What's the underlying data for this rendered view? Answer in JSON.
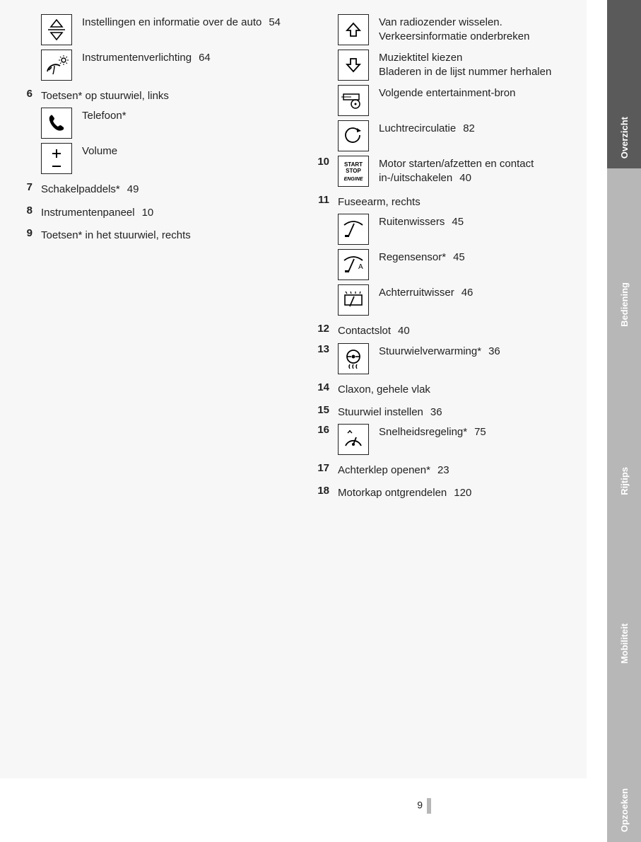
{
  "page_number": "9",
  "tabs": [
    {
      "label": "Overzicht",
      "bg": "#5a5a5a"
    },
    {
      "label": "Bediening",
      "bg": "#b7b7b7"
    },
    {
      "label": "Rijtips",
      "bg": "#b7b7b7"
    },
    {
      "label": "Mobiliteit",
      "bg": "#b7b7b7"
    },
    {
      "label": "Opzoeken",
      "bg": "#b7b7b7"
    }
  ],
  "left": [
    {
      "type": "icon",
      "icon": "up-down",
      "lines": [
        {
          "t": "Instellingen en informatie over de auto",
          "p": "54"
        }
      ]
    },
    {
      "type": "icon",
      "icon": "gauge-sun",
      "lines": [
        {
          "t": "Instrumentenverlichting",
          "p": "64"
        }
      ]
    },
    {
      "type": "head",
      "num": "6",
      "t": "Toetsen* op stuurwiel, links"
    },
    {
      "type": "icon",
      "indent": true,
      "icon": "phone",
      "lines": [
        {
          "t": "Telefoon*"
        }
      ]
    },
    {
      "type": "icon",
      "indent": true,
      "icon": "plus-minus",
      "lines": [
        {
          "t": "Volume"
        }
      ]
    },
    {
      "type": "head",
      "num": "7",
      "t": "Schakelpaddels*",
      "p": "49"
    },
    {
      "type": "head",
      "num": "8",
      "t": "Instrumentenpaneel",
      "p": "10"
    },
    {
      "type": "head",
      "num": "9",
      "t": "Toetsen* in het stuurwiel, rechts"
    }
  ],
  "right": [
    {
      "type": "icon",
      "icon": "arrow-up",
      "lines": [
        {
          "t": "Van radiozender wisselen."
        },
        {
          "t": "Verkeersinformatie onderbreken"
        }
      ]
    },
    {
      "type": "icon",
      "icon": "arrow-down",
      "lines": [
        {
          "t": "Muziektitel kiezen"
        },
        {
          "t": "Bladeren in de lijst nummer herha­len"
        }
      ]
    },
    {
      "type": "icon",
      "icon": "media-source",
      "lines": [
        {
          "t": "Volgende entertainment-bron"
        }
      ]
    },
    {
      "type": "icon",
      "icon": "recirc",
      "lines": [
        {
          "t": "Luchtrecirculatie",
          "p": "82"
        }
      ]
    },
    {
      "type": "iconhead",
      "num": "10",
      "icon": "start-stop",
      "lines": [
        {
          "t": "Motor starten/afzetten en contact in-/uitschakelen",
          "p": "40"
        }
      ]
    },
    {
      "type": "head",
      "num": "11",
      "t": "Fuseearm, rechts"
    },
    {
      "type": "icon",
      "indent": true,
      "icon": "wiper",
      "lines": [
        {
          "t": "Ruitenwissers",
          "p": "45"
        }
      ]
    },
    {
      "type": "icon",
      "indent": true,
      "icon": "wiper-a",
      "lines": [
        {
          "t": "Regensensor*",
          "p": "45"
        }
      ]
    },
    {
      "type": "icon",
      "indent": true,
      "icon": "rear-wiper",
      "lines": [
        {
          "t": "Achterruitwisser",
          "p": "46"
        }
      ]
    },
    {
      "type": "head",
      "num": "12",
      "t": "Contactslot",
      "p": "40"
    },
    {
      "type": "iconhead",
      "num": "13",
      "icon": "steering-heat",
      "lines": [
        {
          "t": "Stuurwielverwarming*",
          "p": "36"
        }
      ]
    },
    {
      "type": "head",
      "num": "14",
      "t": "Claxon, gehele vlak"
    },
    {
      "type": "head",
      "num": "15",
      "t": "Stuurwiel instellen",
      "p": "36"
    },
    {
      "type": "iconhead",
      "num": "16",
      "icon": "cruise",
      "lines": [
        {
          "t": "Snelheidsregeling*",
          "p": "75"
        }
      ]
    },
    {
      "type": "head",
      "num": "17",
      "t": "Achterklep openen*",
      "p": "23"
    },
    {
      "type": "head",
      "num": "18",
      "t": "Motorkap ontgrendelen",
      "p": "120"
    }
  ],
  "icons": {
    "up-down": "<svg width='28' height='34' viewBox='0 0 28 34'><path d='M14 3 L22 13 L6 13 Z' fill='none' stroke='#000' stroke-width='1.6'/><path d='M14 31 L22 21 L6 21 Z' fill='none' stroke='#000' stroke-width='1.6'/><line x1='2' y1='17' x2='26' y2='17' stroke='#000' stroke-width='1.4'/></svg>",
    "gauge-sun": "<svg width='34' height='30' viewBox='0 0 34 30'><path d='M4 24 A12 12 0 0 1 22 16' fill='none' stroke='#000' stroke-width='1.8'/><line x1='6' y1='22' x2='10' y2='18' stroke='#000' stroke-width='1.6'/><circle cx='27' cy='8' r='3' fill='none' stroke='#000' stroke-width='1.4'/><line x1='27' y1='1' x2='27' y2='3' stroke='#000'/><line x1='27' y1='13' x2='27' y2='15' stroke='#000'/><line x1='20' y1='8' x2='22' y2='8' stroke='#000'/><line x1='32' y1='8' x2='34' y2='8' stroke='#000'/><line x1='22' y1='3' x2='23.5' y2='4.5' stroke='#000'/><line x1='30.5' y1='11.5' x2='32' y2='13' stroke='#000'/><line x1='32' y1='3' x2='30.5' y2='4.5' stroke='#000'/><line x1='23.5' y1='11.5' x2='22' y2='13' stroke='#000'/><path d='M12 28 Q14 20 14 16' fill='none' stroke='#000' stroke-width='1.4'/></svg>",
    "phone": "<svg width='30' height='30' viewBox='0 0 30 30'><path d='M7 4 Q4 6 5 11 Q7 18 13 23 Q18 27 23 25 Q26 24 25 21 L21 18 Q19 18 17 20 Q12 17 10 12 Q12 10 12 8 L9 4 Q8 3 7 4 Z' fill='#000'/></svg>",
    "plus-minus": "<svg width='28' height='34' viewBox='0 0 28 34'><line x1='14' y1='4' x2='14' y2='16' stroke='#000' stroke-width='2'/><line x1='8' y1='10' x2='20' y2='10' stroke='#000' stroke-width='2'/><line x1='8' y1='28' x2='20' y2='28' stroke='#000' stroke-width='2'/></svg>",
    "arrow-up": "<svg width='30' height='30' viewBox='0 0 30 30'><path d='M15 6 L24 16 L19 16 L19 24 L11 24 L11 16 L6 16 Z' fill='none' stroke='#000' stroke-width='1.8'/></svg>",
    "arrow-down": "<svg width='30' height='30' viewBox='0 0 30 30'><path d='M15 24 L24 14 L19 14 L19 6 L11 6 L11 14 L6 14 Z' fill='none' stroke='#000' stroke-width='1.8'/></svg>",
    "media-source": "<svg width='34' height='26' viewBox='0 0 34 26'><rect x='3' y='4' width='22' height='8' fill='none' stroke='#000' stroke-width='1.5'/><line x='5' y1='8' x2='14' y2='8' stroke='#000'/><circle cx='20' cy='18' r='6' fill='none' stroke='#000' stroke-width='1.5'/><circle cx='20' cy='18' r='1.5' fill='#000'/></svg>",
    "recirc": "<svg width='30' height='30' viewBox='0 0 30 30'><path d='M22 8 A10 10 0 1 0 24 14' fill='none' stroke='#000' stroke-width='1.8'/><path d='M20 4 L26 8 L20 10 Z' fill='#000'/></svg>",
    "start-stop": "<svg width='38' height='38' viewBox='0 0 38 38'><text x='19' y='12' text-anchor='middle' font-size='8' font-weight='bold' fill='#000'>START</text><text x='19' y='21' text-anchor='middle' font-size='8' font-weight='bold' fill='#000'>STOP</text><text x='19' y='32' text-anchor='middle' font-size='7' font-style='italic' font-weight='bold' fill='#000'>ENGINE</text></svg>",
    "wiper": "<svg width='34' height='28' viewBox='0 0 34 28'><path d='M4 8 Q17 -2 30 8' fill='none' stroke='#000' stroke-width='1.8'/><line x1='10' y1='24' x2='18' y2='6' stroke='#000' stroke-width='1.8'/><rect x='5' y='22' width='6' height='3' fill='#000'/></svg>",
    "wiper-a": "<svg width='34' height='28' viewBox='0 0 34 28'><path d='M4 8 Q17 -2 30 8' fill='none' stroke='#000' stroke-width='1.8'/><line x1='10' y1='24' x2='18' y2='6' stroke='#000' stroke-width='1.8'/><rect x='5' y='22' width='6' height='3' fill='#000'/><text x='24' y='20' font-size='10' fill='#000'>A</text></svg>",
    "rear-wiper": "<svg width='34' height='26' viewBox='0 0 34 26'><rect x='5' y='6' width='24' height='14' fill='none' stroke='#000' stroke-width='1.6'/><line x1='12' y1='22' x2='18' y2='8' stroke='#000' stroke-width='1.6'/><path d='M8 4 L6 1 M14 4 L13 1 M20 4 L20 1 M26 4 L27 1' stroke='#000' stroke-width='1.2'/></svg>",
    "steering-heat": "<svg width='32' height='32' viewBox='0 0 32 32'><circle cx='16' cy='13' r='9' fill='none' stroke='#000' stroke-width='1.8'/><circle cx='16' cy='13' r='2.5' fill='#000'/><line x1='7' y1='13' x2='13' y2='13' stroke='#000' stroke-width='1.6'/><line x1='19' y1='13' x2='25' y2='13' stroke='#000' stroke-width='1.6'/><path d='M11 24 Q9 27 11 30 M16 24 Q14 27 16 30 M21 24 Q19 27 21 30' fill='none' stroke='#000' stroke-width='1.4'/></svg>",
    "cruise": "<svg width='32' height='30' viewBox='0 0 32 30'><path d='M5 24 A12 12 0 0 1 27 24' fill='none' stroke='#000' stroke-width='1.8'/><line x1='16' y1='22' x2='20' y2='12' stroke='#000' stroke-width='1.8'/><circle cx='16' cy='22' r='2' fill='#000'/><path d='M8 6 L11 3 L14 6' fill='none' stroke='#000' stroke-width='1.4'/><circle cx='11' cy='3' r='1' fill='#000'/></svg>"
  }
}
